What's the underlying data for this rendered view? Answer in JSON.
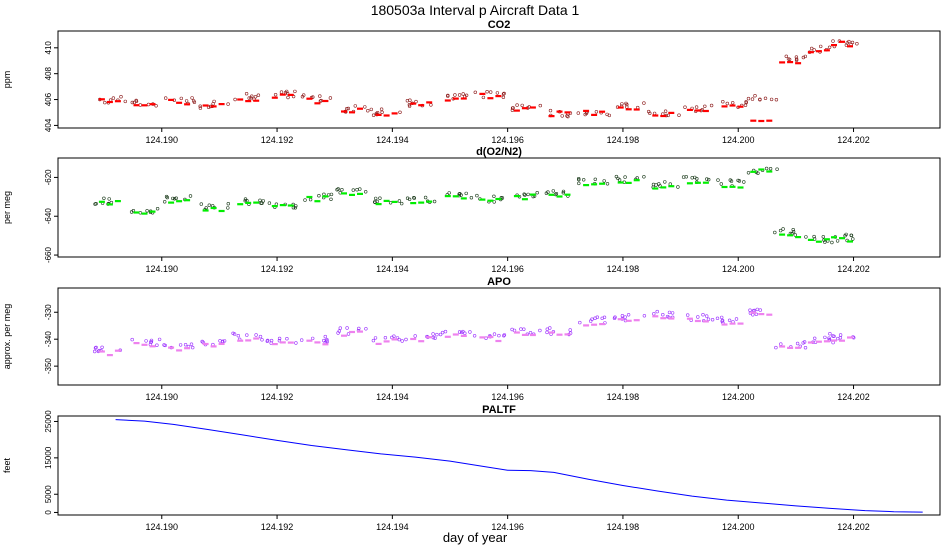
{
  "figure": {
    "title": "180503a   Interval p Aircraft Data 1",
    "xlabel": "day of year"
  },
  "chart_data": [
    {
      "type": "scatter",
      "title": "CO2",
      "ylabel": "ppm",
      "xlim": [
        124.1882,
        124.2035
      ],
      "ylim": [
        403.8,
        411.3
      ],
      "xticks": [
        "124.190",
        "124.192",
        "124.194",
        "124.196",
        "124.198",
        "124.200",
        "124.202"
      ],
      "yticks": [
        "404",
        "406",
        "408",
        "410"
      ],
      "series": [
        {
          "style": "points",
          "color": "#8b1a1a",
          "x": [
            124.1891,
            124.1897,
            124.1903,
            124.1909,
            124.1915,
            124.1921,
            124.1927,
            124.1933,
            124.1939,
            124.1945,
            124.1951,
            124.1957,
            124.1963,
            124.1969,
            124.1975,
            124.1981,
            124.1987,
            124.1993,
            124.1999,
            124.2004,
            124.2009,
            124.2014,
            124.2018
          ],
          "y": [
            406.0,
            405.7,
            405.9,
            405.6,
            406.2,
            406.4,
            406.1,
            405.3,
            405.0,
            405.7,
            406.2,
            406.4,
            405.4,
            404.9,
            405.0,
            405.6,
            404.9,
            405.3,
            405.6,
            406.2,
            409.2,
            409.9,
            410.4
          ]
        },
        {
          "style": "segments",
          "color": "#ff0000",
          "x": [
            124.1891,
            124.1897,
            124.1903,
            124.1909,
            124.1915,
            124.1921,
            124.1927,
            124.1933,
            124.1939,
            124.1945,
            124.1951,
            124.1957,
            124.1963,
            124.1969,
            124.1975,
            124.1981,
            124.1987,
            124.1993,
            124.1999,
            124.2004,
            124.2009,
            124.2014,
            124.2018
          ],
          "y": [
            405.9,
            405.6,
            405.8,
            405.5,
            406.0,
            406.3,
            405.9,
            405.2,
            404.8,
            405.6,
            406.1,
            406.3,
            405.3,
            404.9,
            405.0,
            405.4,
            404.9,
            405.2,
            405.5,
            404.2,
            409.0,
            409.7,
            410.3
          ]
        }
      ]
    },
    {
      "type": "scatter",
      "title": "d(O2/N2)",
      "ylabel": "per meg",
      "xlim": [
        124.1882,
        124.2035
      ],
      "ylim": [
        -661,
        -610
      ],
      "xticks": [
        "124.190",
        "124.192",
        "124.194",
        "124.196",
        "124.198",
        "124.200",
        "124.202"
      ],
      "yticks": [
        "-660",
        "-640",
        "-620"
      ],
      "series": [
        {
          "style": "points",
          "color": "#1a3a1a",
          "x": [
            124.1891,
            124.1897,
            124.1903,
            124.1909,
            124.1915,
            124.1921,
            124.1927,
            124.1933,
            124.1939,
            124.1945,
            124.1951,
            124.1957,
            124.1963,
            124.1969,
            124.1975,
            124.1981,
            124.1987,
            124.1993,
            124.1999,
            124.2004,
            124.2009,
            124.2014,
            124.2018
          ],
          "y": [
            -632,
            -637,
            -631,
            -635,
            -632,
            -634,
            -630,
            -627,
            -632,
            -631,
            -629,
            -631,
            -629,
            -628,
            -622,
            -621,
            -624,
            -621,
            -623,
            -617,
            -648,
            -652,
            -651
          ]
        },
        {
          "style": "segments",
          "color": "#00ee00",
          "x": [
            124.1891,
            124.1897,
            124.1903,
            124.1909,
            124.1915,
            124.1921,
            124.1927,
            124.1933,
            124.1939,
            124.1945,
            124.1951,
            124.1957,
            124.1963,
            124.1969,
            124.1975,
            124.1981,
            124.1987,
            124.1993,
            124.1999,
            124.2004,
            124.2009,
            124.2014,
            124.2018
          ],
          "y": [
            -633,
            -638,
            -632,
            -636,
            -633,
            -635,
            -631,
            -628,
            -633,
            -632,
            -630,
            -632,
            -630,
            -629,
            -623,
            -622,
            -625,
            -622,
            -624,
            -616,
            -650,
            -653,
            -652
          ]
        }
      ]
    },
    {
      "type": "scatter",
      "title": "APO",
      "ylabel": "approx. per meg",
      "xlim": [
        124.1882,
        124.2035
      ],
      "ylim": [
        -357,
        -321
      ],
      "xticks": [
        "124.190",
        "124.192",
        "124.194",
        "124.196",
        "124.198",
        "124.200",
        "124.202"
      ],
      "yticks": [
        "-350",
        "-340",
        "-330"
      ],
      "series": [
        {
          "style": "points",
          "color": "#9b30ff",
          "x": [
            124.1891,
            124.1897,
            124.1903,
            124.1909,
            124.1915,
            124.1921,
            124.1927,
            124.1933,
            124.1939,
            124.1945,
            124.1951,
            124.1957,
            124.1963,
            124.1969,
            124.1975,
            124.1981,
            124.1987,
            124.1993,
            124.1999,
            124.2004,
            124.2009,
            124.2014,
            124.2018
          ],
          "y": [
            -344,
            -341,
            -343,
            -341,
            -339,
            -341,
            -340,
            -337,
            -340,
            -339,
            -338,
            -339,
            -337,
            -337,
            -333,
            -332,
            -331,
            -332,
            -333,
            -330,
            -342,
            -340,
            -339
          ]
        },
        {
          "style": "segments",
          "color": "#ee82ee",
          "x": [
            124.1891,
            124.1897,
            124.1903,
            124.1909,
            124.1915,
            124.1921,
            124.1927,
            124.1933,
            124.1939,
            124.1945,
            124.1951,
            124.1957,
            124.1963,
            124.1969,
            124.1975,
            124.1981,
            124.1987,
            124.1993,
            124.1999,
            124.2004,
            124.2009,
            124.2014,
            124.2018
          ],
          "y": [
            -345,
            -342,
            -344,
            -342,
            -340,
            -342,
            -341,
            -338,
            -341,
            -340,
            -339,
            -340,
            -338,
            -338,
            -334,
            -333,
            -332,
            -333,
            -334,
            -331,
            -343,
            -341,
            -340
          ]
        }
      ]
    },
    {
      "type": "line",
      "title": "PALTF",
      "ylabel": "feet",
      "xlim": [
        124.1882,
        124.2035
      ],
      "ylim": [
        -700,
        26500
      ],
      "xticks": [
        "124.190",
        "124.192",
        "124.194",
        "124.196",
        "124.198",
        "124.200",
        "124.202"
      ],
      "yticks": [
        "0",
        "5000",
        "15000",
        "25000"
      ],
      "series": [
        {
          "style": "line",
          "color": "#0000ff",
          "x": [
            124.1892,
            124.1897,
            124.1902,
            124.1908,
            124.1914,
            124.192,
            124.1926,
            124.1932,
            124.1938,
            124.1944,
            124.195,
            124.1956,
            124.196,
            124.1964,
            124.1968,
            124.1974,
            124.198,
            124.1986,
            124.1992,
            124.1998,
            124.2004,
            124.201,
            124.2016,
            124.2022,
            124.2027,
            124.2032
          ],
          "y": [
            25500,
            25100,
            24200,
            22800,
            21300,
            19800,
            18400,
            17200,
            16100,
            15200,
            14100,
            12600,
            11600,
            11500,
            11000,
            9100,
            7400,
            5900,
            4500,
            3400,
            2600,
            1800,
            1100,
            500,
            200,
            100
          ]
        }
      ]
    }
  ]
}
